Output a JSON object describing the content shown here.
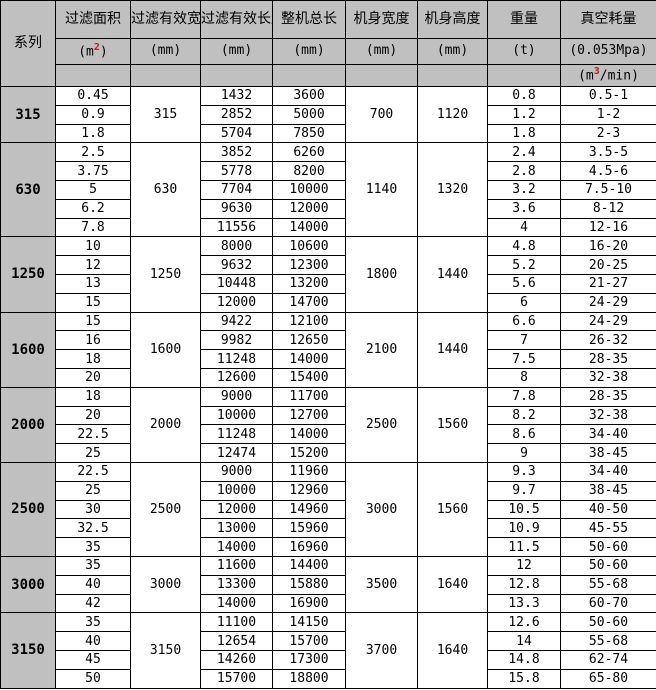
{
  "table": {
    "colors": {
      "header_bg": "#c0c0c0",
      "series_col_bg": "#c0c0c0",
      "grid": "#000000",
      "superscript": "#b22222"
    },
    "header": {
      "series": "系列",
      "cols": [
        "过滤面积",
        "过滤有效宽度",
        "过滤有效长度",
        "整机总长",
        "机身宽度",
        "机身高度",
        "重量",
        "真空耗量"
      ],
      "units": {
        "area": {
          "pre": "(m",
          "sup": "2",
          "post": ")"
        },
        "mm": "(mm)",
        "t": "(t)",
        "vacuum_line1": "(0.053Mpa)",
        "vacuum_line2": {
          "pre": "(m",
          "sup": "3",
          "post": "/min)"
        }
      }
    },
    "groups": [
      {
        "series": "315",
        "width": "315",
        "body_width": "700",
        "body_height": "1120",
        "rows": [
          {
            "area": "0.45",
            "length": "1432",
            "total": "3600",
            "weight": "0.8",
            "vacuum": "0.5-1"
          },
          {
            "area": "0.9",
            "length": "2852",
            "total": "5000",
            "weight": "1.2",
            "vacuum": "1-2"
          },
          {
            "area": "1.8",
            "length": "5704",
            "total": "7850",
            "weight": "1.8",
            "vacuum": "2-3"
          }
        ]
      },
      {
        "series": "630",
        "width": "630",
        "body_width": "1140",
        "body_height": "1320",
        "rows": [
          {
            "area": "2.5",
            "length": "3852",
            "total": "6260",
            "weight": "2.4",
            "vacuum": "3.5-5"
          },
          {
            "area": "3.75",
            "length": "5778",
            "total": "8200",
            "weight": "2.8",
            "vacuum": "4.5-6"
          },
          {
            "area": "5",
            "length": "7704",
            "total": "10000",
            "weight": "3.2",
            "vacuum": "7.5-10"
          },
          {
            "area": "6.2",
            "length": "9630",
            "total": "12000",
            "weight": "3.6",
            "vacuum": "8-12"
          },
          {
            "area": "7.8",
            "length": "11556",
            "total": "14000",
            "weight": "4",
            "vacuum": "12-16"
          }
        ]
      },
      {
        "series": "1250",
        "width": "1250",
        "body_width": "1800",
        "body_height": "1440",
        "rows": [
          {
            "area": "10",
            "length": "8000",
            "total": "10600",
            "weight": "4.8",
            "vacuum": "16-20"
          },
          {
            "area": "12",
            "length": "9632",
            "total": "12300",
            "weight": "5.2",
            "vacuum": "20-25"
          },
          {
            "area": "13",
            "length": "10448",
            "total": "13200",
            "weight": "5.6",
            "vacuum": "21-27"
          },
          {
            "area": "15",
            "length": "12000",
            "total": "14700",
            "weight": "6",
            "vacuum": "24-29"
          }
        ]
      },
      {
        "series": "1600",
        "width": "1600",
        "body_width": "2100",
        "body_height": "1440",
        "rows": [
          {
            "area": "15",
            "length": "9422",
            "total": "12100",
            "weight": "6.6",
            "vacuum": "24-29"
          },
          {
            "area": "16",
            "length": "9982",
            "total": "12650",
            "weight": "7",
            "vacuum": "26-32"
          },
          {
            "area": "18",
            "length": "11248",
            "total": "14000",
            "weight": "7.5",
            "vacuum": "28-35"
          },
          {
            "area": "20",
            "length": "12600",
            "total": "15400",
            "weight": "8",
            "vacuum": "32-38"
          }
        ]
      },
      {
        "series": "2000",
        "width": "2000",
        "body_width": "2500",
        "body_height": "1560",
        "rows": [
          {
            "area": "18",
            "length": "9000",
            "total": "11700",
            "weight": "7.8",
            "vacuum": "28-35"
          },
          {
            "area": "20",
            "length": "10000",
            "total": "12700",
            "weight": "8.2",
            "vacuum": "32-38"
          },
          {
            "area": "22.5",
            "length": "11248",
            "total": "14000",
            "weight": "8.6",
            "vacuum": "34-40"
          },
          {
            "area": "25",
            "length": "12474",
            "total": "15200",
            "weight": "9",
            "vacuum": "38-45"
          }
        ]
      },
      {
        "series": "2500",
        "width": "2500",
        "body_width": "3000",
        "body_height": "1560",
        "rows": [
          {
            "area": "22.5",
            "length": "9000",
            "total": "11960",
            "weight": "9.3",
            "vacuum": "34-40"
          },
          {
            "area": "25",
            "length": "10000",
            "total": "12960",
            "weight": "9.7",
            "vacuum": "38-45"
          },
          {
            "area": "30",
            "length": "12000",
            "total": "14960",
            "weight": "10.5",
            "vacuum": "40-50"
          },
          {
            "area": "32.5",
            "length": "13000",
            "total": "15960",
            "weight": "10.9",
            "vacuum": "45-55"
          },
          {
            "area": "35",
            "length": "14000",
            "total": "16960",
            "weight": "11.5",
            "vacuum": "50-60"
          }
        ]
      },
      {
        "series": "3000",
        "width": "3000",
        "body_width": "3500",
        "body_height": "1640",
        "rows": [
          {
            "area": "35",
            "length": "11600",
            "total": "14400",
            "weight": "12",
            "vacuum": "50-60"
          },
          {
            "area": "40",
            "length": "13300",
            "total": "15880",
            "weight": "12.8",
            "vacuum": "55-68"
          },
          {
            "area": "42",
            "length": "14000",
            "total": "16900",
            "weight": "13.3",
            "vacuum": "60-70"
          }
        ]
      },
      {
        "series": "3150",
        "width": "3150",
        "body_width": "3700",
        "body_height": "1640",
        "rows": [
          {
            "area": "35",
            "length": "11100",
            "total": "14150",
            "weight": "12.6",
            "vacuum": "50-60"
          },
          {
            "area": "40",
            "length": "12654",
            "total": "15700",
            "weight": "14",
            "vacuum": "55-68"
          },
          {
            "area": "45",
            "length": "14260",
            "total": "17300",
            "weight": "14.8",
            "vacuum": "62-74"
          },
          {
            "area": "50",
            "length": "15700",
            "total": "18800",
            "weight": "15.8",
            "vacuum": "65-80"
          }
        ]
      }
    ]
  }
}
